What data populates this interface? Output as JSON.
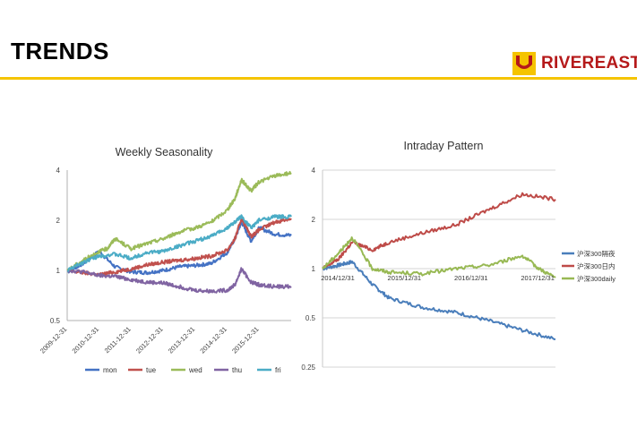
{
  "header": {
    "title": "TRENDS",
    "brand": "RIVEREAST",
    "accent_color": "#f5c400",
    "brand_color": "#b5191a",
    "logo_icon": "rivereast-logo-icon"
  },
  "chart_data": [
    {
      "type": "line",
      "title": "Weekly Seasonality",
      "yscale": "log",
      "ylim": [
        0.5,
        4
      ],
      "yticks": [
        "0.5",
        "1",
        "2",
        "4"
      ],
      "xlim": [
        "2009-12-31",
        "2016-12-31"
      ],
      "xticks": [
        "2009-12-31",
        "2010-12-31",
        "2011-12-31",
        "2012-12-31",
        "2013-12-31",
        "2014-12-31",
        "2015-12-31"
      ],
      "legend": "bottom",
      "grid": false,
      "series": [
        {
          "name": "mon",
          "color": "#4472c4",
          "x": [
            "2010-01-04",
            "2010-06-30",
            "2010-12-31",
            "2011-06-30",
            "2011-12-31",
            "2012-06-30",
            "2012-12-31",
            "2013-06-30",
            "2013-12-31",
            "2014-06-30",
            "2014-12-31",
            "2015-03-31",
            "2015-06-12",
            "2015-09-30",
            "2015-12-31",
            "2016-06-30",
            "2016-12-31"
          ],
          "values": [
            0.98,
            1.1,
            1.3,
            1.05,
            0.98,
            0.97,
            1.0,
            1.05,
            1.07,
            1.1,
            1.28,
            1.55,
            1.95,
            1.5,
            1.8,
            1.65,
            1.62
          ]
        },
        {
          "name": "tue",
          "color": "#c0504d",
          "x": [
            "2010-01-04",
            "2010-06-30",
            "2010-12-31",
            "2011-06-30",
            "2011-12-31",
            "2012-06-30",
            "2012-12-31",
            "2013-06-30",
            "2013-12-31",
            "2014-06-30",
            "2014-12-31",
            "2015-03-31",
            "2015-06-12",
            "2015-09-30",
            "2015-12-31",
            "2016-06-30",
            "2016-12-31"
          ],
          "values": [
            1.0,
            0.97,
            0.94,
            0.98,
            1.02,
            1.08,
            1.12,
            1.15,
            1.18,
            1.22,
            1.32,
            1.55,
            2.05,
            1.6,
            1.75,
            1.95,
            2.05
          ]
        },
        {
          "name": "wed",
          "color": "#9bbb59",
          "x": [
            "2010-01-04",
            "2010-06-30",
            "2010-12-31",
            "2011-03-31",
            "2011-06-30",
            "2011-12-31",
            "2012-06-30",
            "2012-12-31",
            "2013-06-30",
            "2013-12-31",
            "2014-06-30",
            "2014-12-31",
            "2015-03-31",
            "2015-06-12",
            "2015-09-30",
            "2015-12-31",
            "2016-06-30",
            "2016-12-31"
          ],
          "values": [
            1.0,
            1.15,
            1.3,
            1.35,
            1.55,
            1.35,
            1.45,
            1.55,
            1.7,
            1.8,
            1.95,
            2.3,
            2.7,
            3.5,
            3.0,
            3.4,
            3.7,
            3.85
          ]
        },
        {
          "name": "thu",
          "color": "#8064a2",
          "x": [
            "2010-01-04",
            "2010-06-30",
            "2010-12-31",
            "2011-06-30",
            "2011-12-31",
            "2012-06-30",
            "2012-12-31",
            "2013-06-30",
            "2013-12-31",
            "2014-06-30",
            "2014-12-31",
            "2015-03-31",
            "2015-06-12",
            "2015-09-30",
            "2015-12-31",
            "2016-06-30",
            "2016-12-31"
          ],
          "values": [
            1.0,
            0.98,
            0.93,
            0.92,
            0.88,
            0.85,
            0.84,
            0.8,
            0.76,
            0.75,
            0.76,
            0.82,
            1.02,
            0.85,
            0.82,
            0.8,
            0.8
          ]
        },
        {
          "name": "fri",
          "color": "#4bacc6",
          "x": [
            "2010-01-04",
            "2010-06-30",
            "2010-12-31",
            "2011-06-30",
            "2011-12-31",
            "2012-06-30",
            "2012-12-31",
            "2013-06-30",
            "2013-12-31",
            "2014-06-30",
            "2014-12-31",
            "2015-03-31",
            "2015-06-12",
            "2015-09-30",
            "2015-12-31",
            "2016-06-30",
            "2016-12-31"
          ],
          "values": [
            1.0,
            1.12,
            1.22,
            1.25,
            1.18,
            1.28,
            1.3,
            1.4,
            1.5,
            1.6,
            1.8,
            1.95,
            2.1,
            1.8,
            2.0,
            2.1,
            2.1
          ]
        }
      ]
    },
    {
      "type": "line",
      "title": "Intraday Pattern",
      "yscale": "log",
      "ylim": [
        0.25,
        4
      ],
      "yticks": [
        "0.25",
        "0.5",
        "1",
        "2",
        "4"
      ],
      "xlim": [
        "2014-12-31",
        "2018-06-30"
      ],
      "xticks": [
        "2014/12/31",
        "2015/12/31",
        "2016/12/31",
        "2017/12/31"
      ],
      "legend": "right",
      "grid": true,
      "series": [
        {
          "name": "沪深300隔夜",
          "color": "#4a7ebb",
          "x": [
            "2014-12-31",
            "2015-03-31",
            "2015-06-12",
            "2015-09-30",
            "2015-12-31",
            "2016-06-30",
            "2016-12-31",
            "2017-06-30",
            "2017-12-31",
            "2018-06-30"
          ],
          "values": [
            1.0,
            1.05,
            1.1,
            0.8,
            0.66,
            0.58,
            0.54,
            0.48,
            0.42,
            0.37
          ]
        },
        {
          "name": "沪深300日内",
          "color": "#be4b48",
          "x": [
            "2014-12-31",
            "2015-03-31",
            "2015-06-12",
            "2015-09-30",
            "2015-12-31",
            "2016-06-30",
            "2016-12-31",
            "2017-06-30",
            "2017-12-31",
            "2018-06-30"
          ],
          "values": [
            1.0,
            1.15,
            1.45,
            1.3,
            1.45,
            1.65,
            1.85,
            2.3,
            2.85,
            2.65
          ]
        },
        {
          "name": "沪深300daily",
          "color": "#98b954",
          "x": [
            "2014-12-31",
            "2015-03-31",
            "2015-06-12",
            "2015-09-30",
            "2015-12-31",
            "2016-06-30",
            "2016-12-31",
            "2017-06-30",
            "2017-12-31",
            "2018-03-31",
            "2018-06-30"
          ],
          "values": [
            1.0,
            1.25,
            1.55,
            1.0,
            0.95,
            0.93,
            1.0,
            1.05,
            1.2,
            1.0,
            0.88
          ]
        }
      ]
    }
  ]
}
